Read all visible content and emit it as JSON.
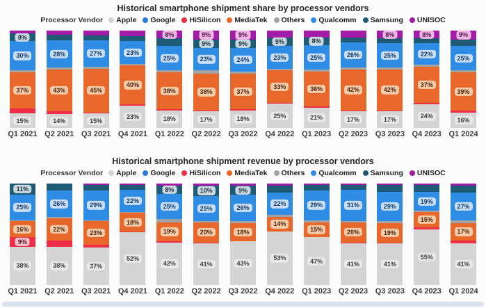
{
  "chart_data": [
    {
      "type": "bar",
      "stacked": true,
      "title": "Historical smartphone shipment share by processor vendors",
      "legend_title": "Processor Vendor",
      "legend_position": "top",
      "unit": "%",
      "ylim": [
        0,
        100
      ],
      "grid": false,
      "categories": [
        "Q1 2021",
        "Q2 2021",
        "Q3 2021",
        "Q4 2021",
        "Q1 2022",
        "Q2 2022",
        "Q3 2022",
        "Q4 2022",
        "Q1 2023",
        "Q2 2023",
        "Q3 2023",
        "Q4 2023",
        "Q1 2024"
      ],
      "series": [
        {
          "name": "Apple",
          "color": "#d4d4d4",
          "label_bg": "#e9e9e9",
          "label_color": "#3d3d3d",
          "values": [
            15,
            14,
            15,
            23,
            18,
            17,
            18,
            25,
            21,
            17,
            17,
            24,
            16
          ],
          "labels": [
            "15%",
            "14%",
            "15%",
            "23%",
            "18%",
            "17%",
            "18%",
            "25%",
            "21%",
            "17%",
            "17%",
            "24%",
            "16%"
          ]
        },
        {
          "name": "Google",
          "color": "#2a7ae0",
          "label_bg": "#c8def7",
          "label_color": "#123a66",
          "values": [
            0,
            0,
            0,
            0,
            0,
            0,
            0,
            0,
            0,
            0,
            0,
            0,
            0
          ],
          "labels": [
            null,
            null,
            null,
            null,
            null,
            null,
            null,
            null,
            null,
            null,
            null,
            null,
            null
          ]
        },
        {
          "name": "HiSilicon",
          "color": "#ee2d47",
          "label_bg": "#f8c0ca",
          "label_color": "#5c1020",
          "values": [
            5,
            3,
            1,
            1,
            1,
            1,
            1,
            1,
            1,
            1,
            1,
            2,
            2
          ],
          "labels": [
            null,
            null,
            null,
            null,
            null,
            null,
            null,
            null,
            null,
            null,
            null,
            null,
            null
          ]
        },
        {
          "name": "MediaTek",
          "color": "#e8682c",
          "label_bg": "#f6cca8",
          "label_color": "#4a2410",
          "values": [
            37,
            43,
            45,
            40,
            38,
            38,
            37,
            33,
            36,
            42,
            42,
            37,
            39
          ],
          "labels": [
            "37%",
            "43%",
            "45%",
            "40%",
            "38%",
            "38%",
            "37%",
            "33%",
            "36%",
            "42%",
            "42%",
            "37%",
            "39%"
          ]
        },
        {
          "name": "Others",
          "color": "#a3a3a3",
          "label_bg": "#e0e0e0",
          "label_color": "#3d3d3d",
          "values": [
            2,
            2,
            2,
            2,
            2,
            3,
            2,
            2,
            2,
            2,
            2,
            2,
            2
          ],
          "labels": [
            null,
            null,
            null,
            null,
            null,
            null,
            null,
            null,
            null,
            null,
            null,
            null,
            null
          ]
        },
        {
          "name": "Qualcomm",
          "color": "#2e8ce4",
          "label_bg": "#c8def7",
          "label_color": "#123a66",
          "values": [
            30,
            28,
            27,
            23,
            25,
            23,
            24,
            23,
            25,
            26,
            25,
            22,
            25
          ],
          "labels": [
            "30%",
            "28%",
            "27%",
            "23%",
            "25%",
            "23%",
            "24%",
            "23%",
            "25%",
            "26%",
            "25%",
            "22%",
            "25%"
          ]
        },
        {
          "name": "Samsung",
          "color": "#1e5b74",
          "label_bg": "#ccd8e0",
          "label_color": "#16303f",
          "values": [
            8,
            6,
            5,
            5,
            8,
            9,
            9,
            9,
            8,
            5,
            5,
            5,
            7
          ],
          "labels": [
            "8%",
            null,
            null,
            null,
            null,
            "9%",
            "9%",
            "9%",
            "8%",
            null,
            null,
            null,
            null
          ]
        },
        {
          "name": "UNISOC",
          "color": "#a21ca8",
          "label_bg": "#ecb6df",
          "label_color": "#571055",
          "values": [
            3,
            4,
            5,
            6,
            8,
            9,
            9,
            7,
            7,
            7,
            8,
            8,
            9
          ],
          "labels": [
            null,
            null,
            null,
            null,
            "8%",
            "9%",
            "9%",
            null,
            null,
            null,
            "8%",
            "8%",
            "9%"
          ]
        }
      ]
    },
    {
      "type": "bar",
      "stacked": true,
      "title": "Historical smartphone shipment revenue by processor vendors",
      "legend_title": "Processor Vendor",
      "legend_position": "top",
      "unit": "%",
      "ylim": [
        0,
        100
      ],
      "grid": false,
      "categories": [
        "Q1 2021",
        "Q2 2021",
        "Q3 2021",
        "Q4 2021",
        "Q1 2022",
        "Q2 2022",
        "Q3 2022",
        "Q4 2022",
        "Q1 2023",
        "Q2 2023",
        "Q3 2023",
        "Q4 2023",
        "Q1 2024"
      ],
      "series": [
        {
          "name": "Apple",
          "color": "#d4d4d4",
          "label_bg": "#e9e9e9",
          "label_color": "#3d3d3d",
          "values": [
            38,
            38,
            37,
            52,
            42,
            41,
            43,
            53,
            47,
            41,
            41,
            55,
            41
          ],
          "labels": [
            "38%",
            "38%",
            "37%",
            "52%",
            "42%",
            "41%",
            "43%",
            "53%",
            "47%",
            "41%",
            "41%",
            "55%",
            "41%"
          ]
        },
        {
          "name": "Google",
          "color": "#2a7ae0",
          "label_bg": "#c8def7",
          "label_color": "#123a66",
          "values": [
            0,
            0,
            0,
            0,
            0,
            0,
            0,
            0,
            0,
            0,
            0,
            0,
            0
          ],
          "labels": [
            null,
            null,
            null,
            null,
            null,
            null,
            null,
            null,
            null,
            null,
            null,
            null,
            null
          ]
        },
        {
          "name": "HiSilicon",
          "color": "#ee2d47",
          "label_bg": "#f8c0ca",
          "label_color": "#5c1020",
          "values": [
            9,
            6,
            3,
            1,
            1,
            1,
            0,
            0,
            0,
            1,
            1,
            2,
            3
          ],
          "labels": [
            "9%",
            null,
            null,
            null,
            null,
            null,
            null,
            null,
            null,
            null,
            null,
            null,
            null
          ]
        },
        {
          "name": "MediaTek",
          "color": "#e8682c",
          "label_bg": "#f6cca8",
          "label_color": "#4a2410",
          "values": [
            16,
            22,
            23,
            18,
            19,
            20,
            18,
            14,
            15,
            20,
            19,
            15,
            17
          ],
          "labels": [
            "16%",
            "22%",
            "23%",
            "18%",
            "19%",
            "20%",
            "18%",
            "14%",
            "15%",
            "20%",
            "19%",
            "15%",
            "17%"
          ]
        },
        {
          "name": "Others",
          "color": "#a3a3a3",
          "label_bg": "#e0e0e0",
          "label_color": "#3d3d3d",
          "values": [
            1,
            1,
            1,
            1,
            3,
            1,
            2,
            2,
            2,
            1,
            2,
            1,
            3
          ],
          "labels": [
            null,
            null,
            null,
            null,
            null,
            null,
            null,
            null,
            null,
            null,
            null,
            null,
            null
          ]
        },
        {
          "name": "Qualcomm",
          "color": "#2e8ce4",
          "label_bg": "#c8def7",
          "label_color": "#123a66",
          "values": [
            25,
            26,
            29,
            22,
            25,
            25,
            26,
            22,
            29,
            31,
            29,
            19,
            27
          ],
          "labels": [
            "25%",
            "26%",
            "29%",
            "22%",
            "25%",
            "25%",
            "26%",
            "22%",
            "29%",
            "31%",
            "29%",
            "19%",
            "27%"
          ]
        },
        {
          "name": "Samsung",
          "color": "#1e5b74",
          "label_bg": "#ccd8e0",
          "label_color": "#16303f",
          "values": [
            11,
            7,
            6,
            5,
            8,
            10,
            9,
            7,
            6,
            5,
            7,
            7,
            7
          ],
          "labels": [
            "11%",
            null,
            null,
            null,
            "8%",
            "10%",
            "9%",
            null,
            null,
            null,
            null,
            null,
            null
          ]
        },
        {
          "name": "UNISOC",
          "color": "#a21ca8",
          "label_bg": "#ecb6df",
          "label_color": "#571055",
          "values": [
            0,
            0,
            1,
            1,
            2,
            2,
            2,
            2,
            1,
            1,
            1,
            1,
            2
          ],
          "labels": [
            null,
            null,
            null,
            null,
            null,
            null,
            null,
            null,
            null,
            null,
            null,
            null,
            null
          ]
        }
      ]
    }
  ]
}
